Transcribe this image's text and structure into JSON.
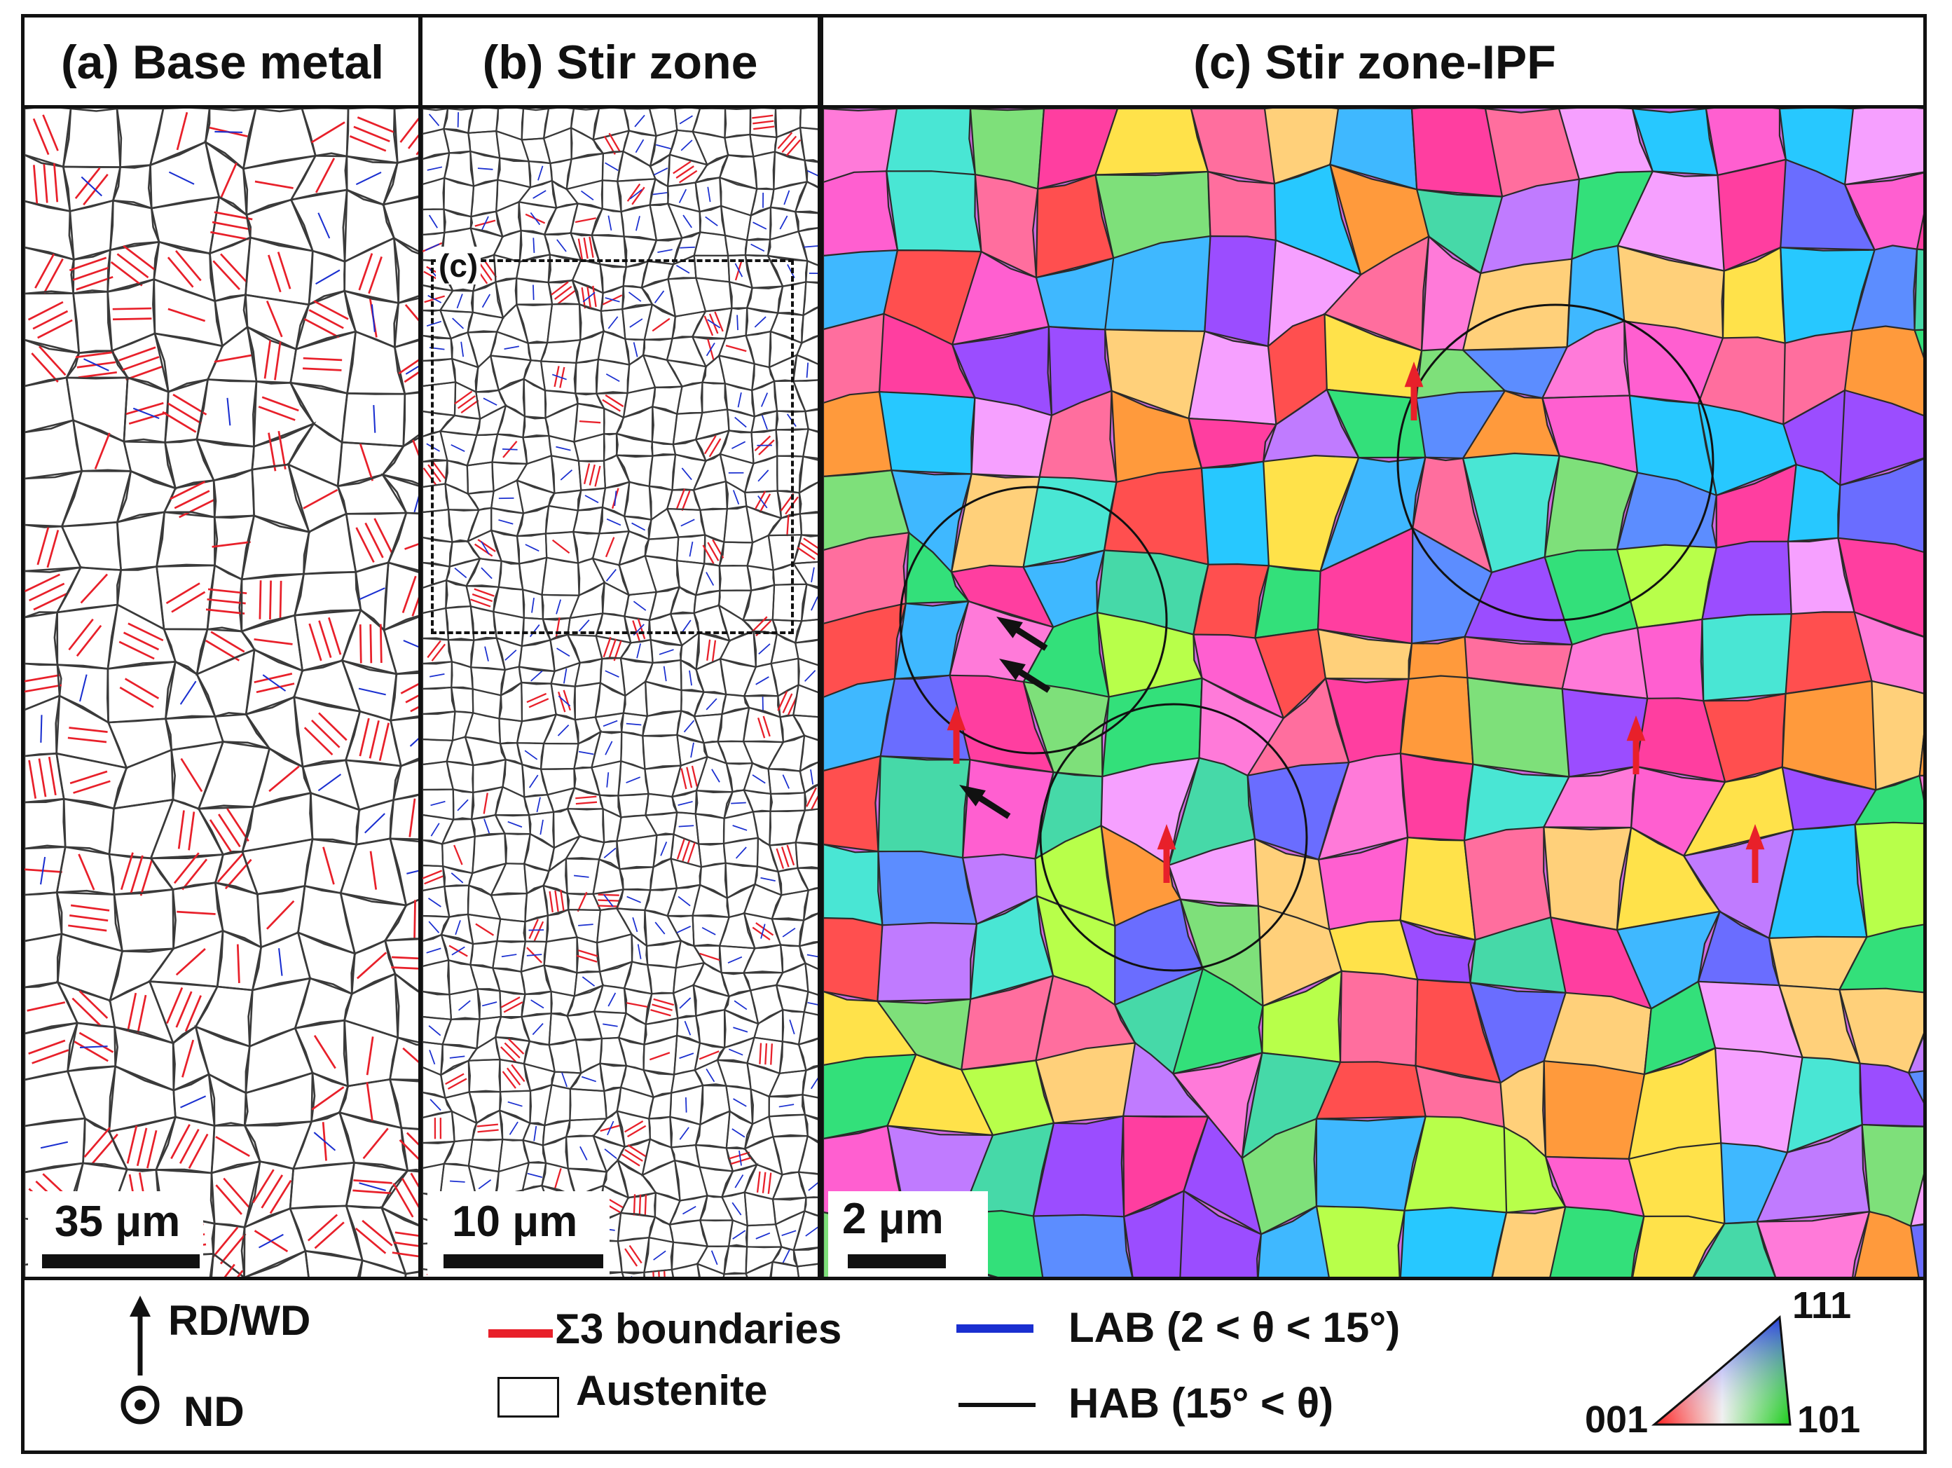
{
  "panels": {
    "a": {
      "title": "(a) Base metal",
      "scale_label": "35 μm"
    },
    "b": {
      "title": "(b) Stir zone",
      "scale_label": "10 μm",
      "inset_label": "(c)"
    },
    "c": {
      "title": "(c) Stir zone-IPF",
      "scale_label": "2 μm"
    }
  },
  "legend": {
    "axis_rd": "RD/WD",
    "axis_nd": "ND",
    "sigma3_label": "Σ3 boundaries",
    "austenite_label": "Austenite",
    "lab_label": "LAB (2 < θ < 15°)",
    "hab_label": "HAB (15° < θ)",
    "ipf_001": "001",
    "ipf_101": "101",
    "ipf_111": "111"
  },
  "colors": {
    "sigma3": "#e8202a",
    "lab": "#1a2fd0",
    "hab": "#111111"
  }
}
